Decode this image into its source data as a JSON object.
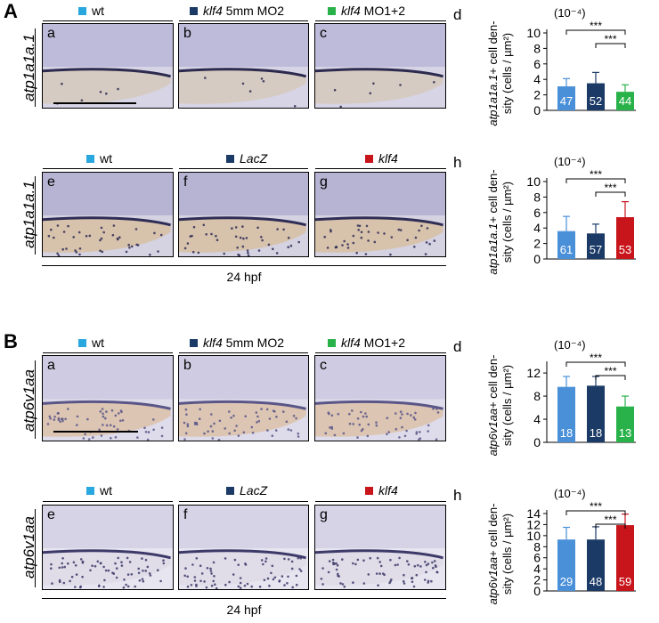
{
  "panel_A": "A",
  "panel_B": "B",
  "genes": {
    "A": "atp1a1a.1",
    "B": "atp6v1aa"
  },
  "legend_kd": {
    "wt": "wt",
    "ctrl_gene": "klf4",
    "ctrl_suffix": " 5mm MO2",
    "mo_gene": "klf4",
    "mo_suffix": " MO1+2"
  },
  "legend_oe": {
    "wt": "wt",
    "lacz": "LacZ",
    "klf4": "klf4"
  },
  "hpf": "24 hpf",
  "image_labels": {
    "A_top": [
      "a",
      "b",
      "c"
    ],
    "A_bottom": [
      "e",
      "f",
      "g"
    ],
    "B_top": [
      "a",
      "b",
      "c"
    ],
    "B_bottom": [
      "e",
      "f",
      "g"
    ]
  },
  "chart_letters": {
    "A_top": "d",
    "A_bottom": "h",
    "B_top": "d",
    "B_bottom": "h"
  },
  "colors": {
    "wt": "#4a90d9",
    "ctrl": "#1b3a66",
    "mo": "#2ab24a",
    "klf4": "#c8141b",
    "legend_wt": "#29a8e0"
  },
  "chart_data": [
    {
      "type": "bar",
      "panel": "A-d",
      "ylabel_gene": "atp1a1a.1",
      "ylabel_rest": "+ cell den-",
      "ylabel_line2": "sity (cells / µm²)",
      "scale": "(10⁻⁴)",
      "yticks": [
        "0",
        "2",
        "4",
        "6",
        "8",
        "10"
      ],
      "ylim": [
        0,
        10
      ],
      "values": [
        3.1,
        3.5,
        2.4
      ],
      "errors": [
        1.0,
        1.4,
        0.9
      ],
      "n": [
        "47",
        "52",
        "44"
      ],
      "colors": [
        "#4a90d9",
        "#1b3a66",
        "#2ab24a"
      ],
      "sig": [
        "***",
        "***"
      ]
    },
    {
      "type": "bar",
      "panel": "A-h",
      "ylabel_gene": "atp1a1a.1",
      "ylabel_rest": "+ cell den-",
      "ylabel_line2": "sity (cells / µm²)",
      "scale": "(10⁻⁴)",
      "yticks": [
        "0",
        "2",
        "4",
        "6",
        "8",
        "10"
      ],
      "ylim": [
        0,
        10
      ],
      "values": [
        3.6,
        3.3,
        5.4
      ],
      "errors": [
        1.9,
        1.2,
        2.0
      ],
      "n": [
        "61",
        "57",
        "53"
      ],
      "colors": [
        "#4a90d9",
        "#1b3a66",
        "#c8141b"
      ],
      "sig": [
        "***",
        "***"
      ]
    },
    {
      "type": "bar",
      "panel": "B-d",
      "ylabel_gene": "atp6v1aa",
      "ylabel_rest": "+ cell den-",
      "ylabel_line2": "sity (cells / µm²)",
      "scale": "(10⁻⁴)",
      "yticks": [
        "0",
        "4",
        "8",
        "12"
      ],
      "ylim": [
        0,
        13.4
      ],
      "values": [
        9.6,
        9.8,
        6.2
      ],
      "errors": [
        1.8,
        1.6,
        1.8
      ],
      "n": [
        "18",
        "18",
        "13"
      ],
      "colors": [
        "#4a90d9",
        "#1b3a66",
        "#2ab24a"
      ],
      "sig": [
        "***",
        "***"
      ]
    },
    {
      "type": "bar",
      "panel": "B-h",
      "ylabel_gene": "atp6v1aa",
      "ylabel_rest": "+ cell den-",
      "ylabel_line2": "sity (cells / µm²)",
      "scale": "(10⁻⁴)",
      "yticks": [
        "0",
        "2",
        "4",
        "6",
        "8",
        "10",
        "12",
        "14"
      ],
      "ylim": [
        0,
        14
      ],
      "values": [
        9.3,
        9.3,
        11.9
      ],
      "errors": [
        2.2,
        2.3,
        2.0
      ],
      "n": [
        "29",
        "48",
        "59"
      ],
      "colors": [
        "#4a90d9",
        "#1b3a66",
        "#c8141b"
      ],
      "sig": [
        "***",
        "***"
      ]
    }
  ]
}
